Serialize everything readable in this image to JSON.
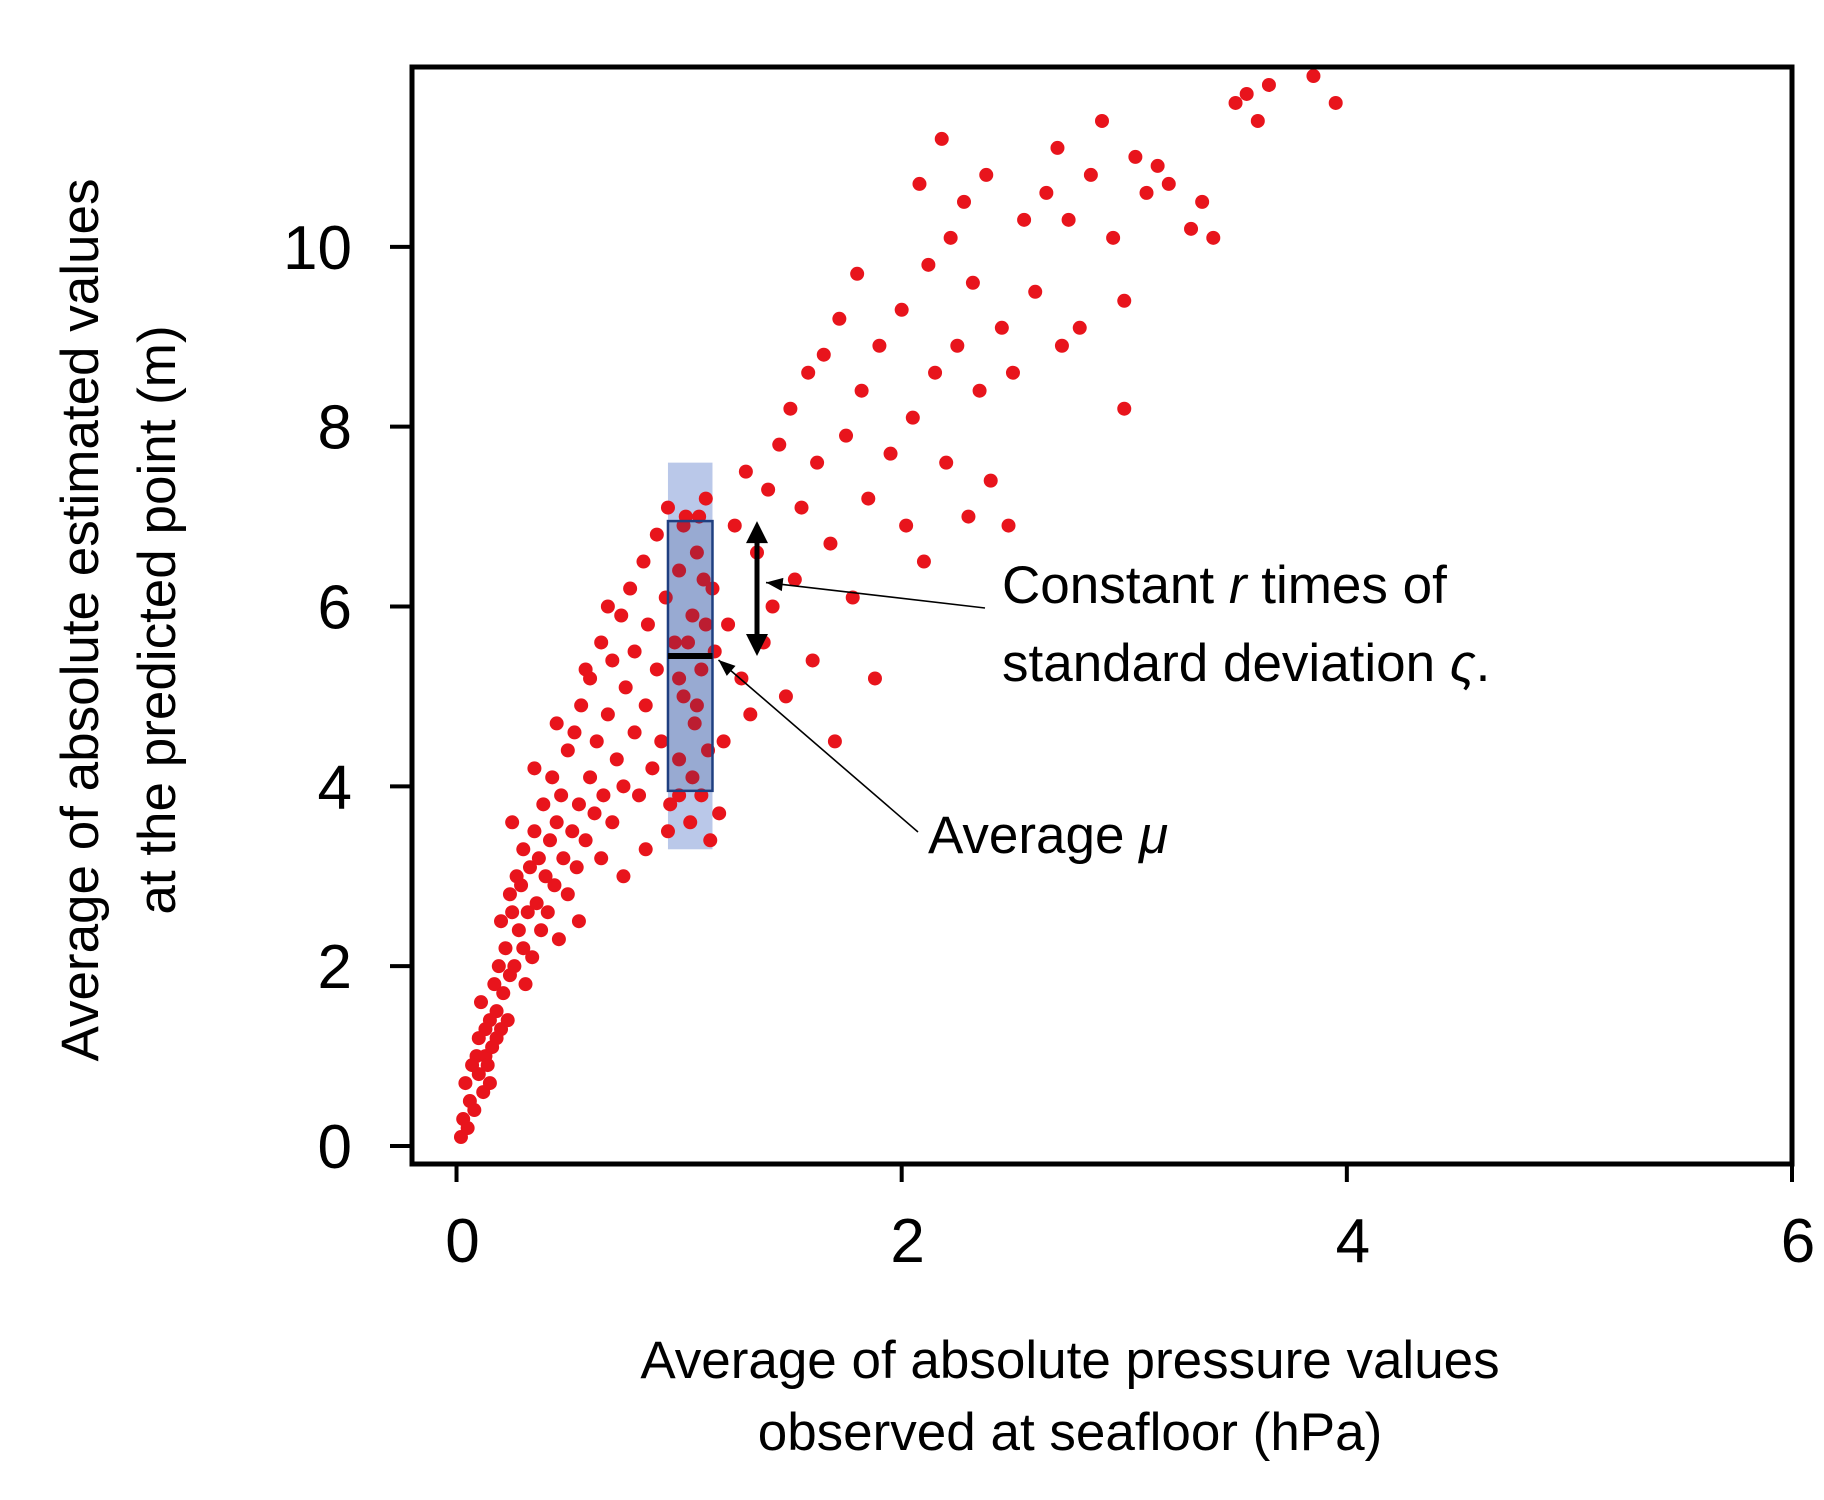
{
  "chart_data": {
    "type": "scatter",
    "title": "",
    "xlabel": [
      "Average of absolute pressure values",
      "observed at seafloor (hPa)"
    ],
    "ylabel": [
      "Average of absolute estimated values",
      "at the predicted point (m)"
    ],
    "xlim": [
      -0.2,
      6
    ],
    "ylim": [
      -0.2,
      12
    ],
    "xticks": [
      0,
      2,
      4,
      6
    ],
    "yticks": [
      0,
      2,
      4,
      6,
      8,
      10
    ],
    "grid": false,
    "point_color": "#e8141c",
    "series": [
      {
        "name": "observations",
        "points": [
          [
            0.02,
            0.1
          ],
          [
            0.03,
            0.3
          ],
          [
            0.05,
            0.2
          ],
          [
            0.06,
            0.5
          ],
          [
            0.04,
            0.7
          ],
          [
            0.08,
            0.4
          ],
          [
            0.1,
            0.8
          ],
          [
            0.09,
            1.0
          ],
          [
            0.12,
            0.6
          ],
          [
            0.07,
            0.9
          ],
          [
            0.1,
            1.2
          ],
          [
            0.13,
            1.0
          ],
          [
            0.15,
            1.4
          ],
          [
            0.11,
            1.6
          ],
          [
            0.14,
            0.9
          ],
          [
            0.16,
            1.1
          ],
          [
            0.18,
            1.5
          ],
          [
            0.17,
            1.8
          ],
          [
            0.2,
            1.3
          ],
          [
            0.19,
            2.0
          ],
          [
            0.13,
            1.3
          ],
          [
            0.15,
            0.7
          ],
          [
            0.18,
            1.2
          ],
          [
            0.21,
            1.7
          ],
          [
            0.22,
            2.2
          ],
          [
            0.2,
            2.5
          ],
          [
            0.24,
            1.9
          ],
          [
            0.23,
            1.4
          ],
          [
            0.25,
            2.6
          ],
          [
            0.26,
            2.0
          ],
          [
            0.24,
            2.8
          ],
          [
            0.27,
            3.0
          ],
          [
            0.28,
            2.4
          ],
          [
            0.3,
            2.2
          ],
          [
            0.29,
            2.9
          ],
          [
            0.3,
            3.3
          ],
          [
            0.31,
            1.8
          ],
          [
            0.32,
            2.6
          ],
          [
            0.33,
            3.1
          ],
          [
            0.34,
            2.1
          ],
          [
            0.35,
            3.5
          ],
          [
            0.36,
            2.7
          ],
          [
            0.37,
            3.2
          ],
          [
            0.38,
            2.4
          ],
          [
            0.39,
            3.8
          ],
          [
            0.4,
            3.0
          ],
          [
            0.41,
            2.6
          ],
          [
            0.42,
            3.4
          ],
          [
            0.43,
            4.1
          ],
          [
            0.44,
            2.9
          ],
          [
            0.45,
            3.6
          ],
          [
            0.46,
            2.3
          ],
          [
            0.47,
            3.9
          ],
          [
            0.48,
            3.2
          ],
          [
            0.5,
            4.4
          ],
          [
            0.5,
            2.8
          ],
          [
            0.52,
            3.5
          ],
          [
            0.53,
            4.6
          ],
          [
            0.54,
            3.1
          ],
          [
            0.55,
            3.8
          ],
          [
            0.56,
            4.9
          ],
          [
            0.58,
            3.4
          ],
          [
            0.6,
            4.1
          ],
          [
            0.6,
            5.2
          ],
          [
            0.62,
            3.7
          ],
          [
            0.63,
            4.5
          ],
          [
            0.65,
            5.6
          ],
          [
            0.66,
            3.9
          ],
          [
            0.68,
            4.8
          ],
          [
            0.7,
            5.4
          ],
          [
            0.7,
            3.6
          ],
          [
            0.72,
            4.3
          ],
          [
            0.74,
            5.9
          ],
          [
            0.75,
            4.0
          ],
          [
            0.76,
            5.1
          ],
          [
            0.78,
            6.2
          ],
          [
            0.8,
            4.6
          ],
          [
            0.8,
            5.5
          ],
          [
            0.82,
            3.9
          ],
          [
            0.84,
            6.5
          ],
          [
            0.85,
            4.9
          ],
          [
            0.86,
            5.8
          ],
          [
            0.88,
            4.2
          ],
          [
            0.9,
            6.8
          ],
          [
            0.9,
            5.3
          ],
          [
            0.92,
            4.5
          ],
          [
            0.94,
            6.1
          ],
          [
            0.95,
            7.1
          ],
          [
            0.96,
            3.8
          ],
          [
            0.98,
            5.6
          ],
          [
            1.0,
            4.3
          ],
          [
            1.0,
            6.4
          ],
          [
            1.02,
            5.0
          ],
          [
            1.03,
            7.0
          ],
          [
            1.05,
            3.6
          ],
          [
            1.06,
            5.9
          ],
          [
            1.07,
            4.7
          ],
          [
            1.08,
            6.6
          ],
          [
            1.1,
            5.3
          ],
          [
            1.1,
            3.9
          ],
          [
            1.12,
            7.2
          ],
          [
            1.13,
            4.4
          ],
          [
            1.15,
            6.2
          ],
          [
            1.16,
            5.5
          ],
          [
            1.18,
            3.7
          ],
          [
            1.2,
            4.5
          ],
          [
            1.22,
            5.8
          ],
          [
            1.25,
            6.9
          ],
          [
            1.28,
            5.2
          ],
          [
            1.3,
            7.5
          ],
          [
            1.32,
            4.8
          ],
          [
            1.35,
            6.6
          ],
          [
            1.38,
            5.6
          ],
          [
            1.4,
            7.3
          ],
          [
            1.42,
            6.0
          ],
          [
            1.45,
            7.8
          ],
          [
            1.48,
            5.0
          ],
          [
            1.5,
            8.2
          ],
          [
            1.52,
            6.3
          ],
          [
            1.55,
            7.1
          ],
          [
            1.58,
            8.6
          ],
          [
            1.6,
            5.4
          ],
          [
            1.62,
            7.6
          ],
          [
            1.65,
            8.8
          ],
          [
            1.68,
            6.7
          ],
          [
            1.7,
            4.5
          ],
          [
            1.72,
            9.2
          ],
          [
            1.75,
            7.9
          ],
          [
            1.78,
            6.1
          ],
          [
            1.8,
            9.7
          ],
          [
            1.82,
            8.4
          ],
          [
            1.85,
            7.2
          ],
          [
            1.88,
            5.2
          ],
          [
            1.9,
            8.9
          ],
          [
            1.95,
            7.7
          ],
          [
            2.0,
            9.3
          ],
          [
            2.02,
            6.9
          ],
          [
            2.05,
            8.1
          ],
          [
            2.08,
            10.7
          ],
          [
            2.1,
            6.5
          ],
          [
            2.12,
            9.8
          ],
          [
            2.15,
            8.6
          ],
          [
            2.18,
            11.2
          ],
          [
            2.2,
            7.6
          ],
          [
            2.22,
            10.1
          ],
          [
            2.25,
            8.9
          ],
          [
            2.28,
            10.5
          ],
          [
            2.3,
            7.0
          ],
          [
            2.32,
            9.6
          ],
          [
            2.35,
            8.4
          ],
          [
            2.38,
            10.8
          ],
          [
            2.4,
            7.4
          ],
          [
            2.45,
            9.1
          ],
          [
            2.48,
            6.9
          ],
          [
            2.5,
            8.6
          ],
          [
            2.55,
            10.3
          ],
          [
            2.6,
            9.5
          ],
          [
            2.65,
            10.6
          ],
          [
            2.7,
            11.1
          ],
          [
            2.72,
            8.9
          ],
          [
            2.75,
            10.3
          ],
          [
            2.8,
            9.1
          ],
          [
            2.85,
            10.8
          ],
          [
            2.9,
            11.4
          ],
          [
            2.95,
            10.1
          ],
          [
            3.0,
            8.2
          ],
          [
            3.0,
            9.4
          ],
          [
            3.05,
            11.0
          ],
          [
            3.1,
            10.6
          ],
          [
            3.15,
            10.9
          ],
          [
            3.2,
            10.7
          ],
          [
            3.3,
            10.2
          ],
          [
            3.35,
            10.5
          ],
          [
            3.4,
            10.1
          ],
          [
            3.5,
            11.6
          ],
          [
            3.55,
            11.7
          ],
          [
            3.6,
            11.4
          ],
          [
            3.65,
            11.8
          ],
          [
            3.85,
            11.9
          ],
          [
            3.95,
            11.6
          ],
          [
            0.35,
            4.2
          ],
          [
            0.55,
            2.5
          ],
          [
            0.45,
            4.7
          ],
          [
            0.65,
            3.2
          ],
          [
            0.75,
            3.0
          ],
          [
            0.25,
            3.6
          ],
          [
            0.85,
            3.3
          ],
          [
            0.95,
            3.5
          ],
          [
            0.58,
            5.3
          ],
          [
            0.68,
            6.0
          ],
          [
            1.02,
            6.9
          ],
          [
            1.08,
            4.9
          ],
          [
            1.12,
            5.8
          ],
          [
            1.14,
            3.4
          ],
          [
            1.04,
            5.6
          ],
          [
            1.06,
            4.1
          ],
          [
            1.0,
            3.9
          ],
          [
            1.11,
            6.3
          ],
          [
            1.09,
            7.0
          ],
          [
            1.0,
            5.2
          ]
        ]
      }
    ],
    "annotations": [
      {
        "kind": "band",
        "label": "",
        "x_range": [
          0.95,
          1.15
        ],
        "y_range": [
          3.3,
          7.6
        ],
        "color": "#4a6fc4"
      },
      {
        "kind": "box",
        "label": "",
        "x_range": [
          0.95,
          1.15
        ],
        "y_range": [
          3.95,
          6.95
        ],
        "color": "#1f3f80"
      },
      {
        "kind": "mean-line",
        "label": "Average μ",
        "x_range": [
          0.95,
          1.15
        ],
        "y": 5.45
      },
      {
        "kind": "sd-arrow",
        "label": "Constant r times of standard deviation ς.",
        "x": 1.35,
        "y_range": [
          5.45,
          6.95
        ]
      }
    ],
    "annotation_text": {
      "sd_line1_pre": "Constant ",
      "sd_line1_var": "r",
      "sd_line1_post": " times of",
      "sd_line2_pre": "standard deviation ",
      "sd_line2_var": "ς",
      "sd_line2_post": ".",
      "avg_pre": "Average ",
      "avg_var": "μ"
    }
  }
}
